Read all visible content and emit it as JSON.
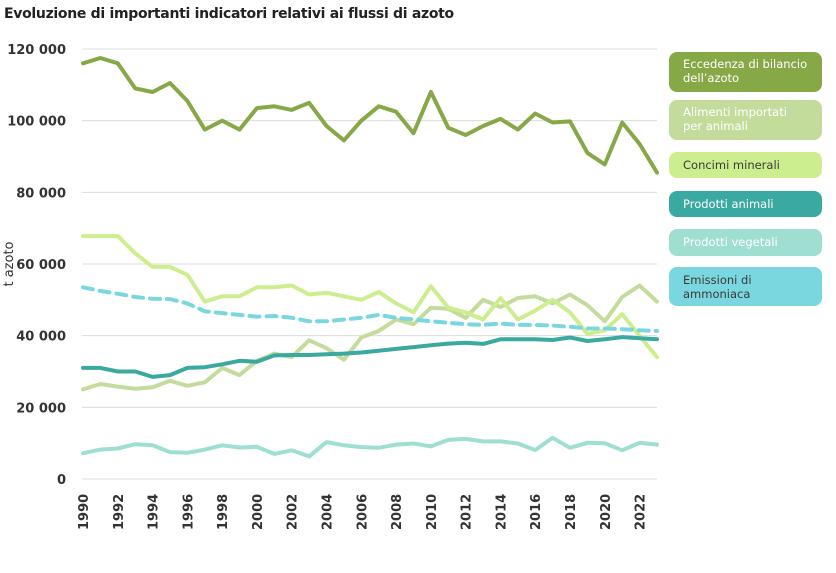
{
  "chart_data": {
    "type": "line",
    "title": "Evoluzione di importanti indicatori relativi ai flussi di azoto",
    "xlabel": "",
    "ylabel": "t azoto",
    "ylim": [
      0,
      120000
    ],
    "yticks": [
      "0",
      "20 000",
      "40 000",
      "60 000",
      "80 000",
      "100 000",
      "120 000"
    ],
    "ytick_values": [
      0,
      20000,
      40000,
      60000,
      80000,
      100000,
      120000
    ],
    "x": [
      1990,
      1991,
      1992,
      1993,
      1994,
      1995,
      1996,
      1997,
      1998,
      1999,
      2000,
      2001,
      2002,
      2003,
      2004,
      2005,
      2006,
      2007,
      2008,
      2009,
      2010,
      2011,
      2012,
      2013,
      2014,
      2015,
      2016,
      2017,
      2018,
      2019,
      2020,
      2021,
      2022,
      2023
    ],
    "xticks": [
      "1990",
      "1992",
      "1994",
      "1996",
      "1998",
      "2000",
      "2002",
      "2004",
      "2006",
      "2008",
      "2010",
      "2012",
      "2014",
      "2016",
      "2018",
      "2020",
      "2022"
    ],
    "grid": true,
    "legend_placement": "right",
    "series": [
      {
        "name": "Eccedenza di bilancio dell’azoto",
        "color": "#87a846",
        "text_color": "#ffffff",
        "dashed": false,
        "values": [
          116000,
          117500,
          116000,
          109000,
          108000,
          110500,
          105500,
          97500,
          100000,
          97500,
          103500,
          104000,
          103000,
          105000,
          98500,
          94500,
          100000,
          104000,
          102500,
          96500,
          108000,
          98000,
          96000,
          98500,
          100500,
          97500,
          102000,
          99500,
          99800,
          91000,
          87800,
          99500,
          93500,
          85500
        ]
      },
      {
        "name": "Alimenti importati per animali",
        "color": "#c3dc9c",
        "text_color": "#ffffff",
        "dashed": false,
        "values": [
          25000,
          26500,
          25800,
          25200,
          25600,
          27400,
          26000,
          27000,
          31000,
          29000,
          33000,
          35000,
          34000,
          38700,
          36500,
          33300,
          39500,
          41300,
          44500,
          43200,
          47800,
          47500,
          45000,
          50000,
          48000,
          50500,
          51000,
          49000,
          51500,
          48500,
          44000,
          50800,
          54000,
          49500
        ]
      },
      {
        "name": "Concimi minerali",
        "color": "#cdee8e",
        "text_color": "#3a3a3a",
        "dashed": false,
        "values": [
          67800,
          67800,
          67800,
          63000,
          59200,
          59200,
          57000,
          49500,
          51000,
          51000,
          53500,
          53500,
          54000,
          51500,
          52000,
          51000,
          50000,
          52200,
          49000,
          46500,
          53800,
          47800,
          46500,
          44500,
          50500,
          44500,
          47000,
          50000,
          46500,
          40500,
          41500,
          46000,
          40000,
          34000
        ]
      },
      {
        "name": "Prodotti animali",
        "color": "#3aa9a1",
        "text_color": "#ffffff",
        "dashed": false,
        "values": [
          31000,
          31000,
          30000,
          30000,
          28500,
          29000,
          31000,
          31200,
          32000,
          33000,
          32700,
          34500,
          34600,
          34600,
          34800,
          35000,
          35300,
          35800,
          36300,
          36800,
          37300,
          37800,
          38000,
          37700,
          39000,
          39000,
          39000,
          38800,
          39500,
          38500,
          39000,
          39600,
          39300,
          39000
        ]
      },
      {
        "name": "Prodotti vegetali",
        "color": "#9edfd2",
        "text_color": "#ffffff",
        "dashed": false,
        "values": [
          7200,
          8200,
          8500,
          9700,
          9400,
          7500,
          7300,
          8200,
          9400,
          8800,
          9000,
          7000,
          8000,
          6300,
          10300,
          9400,
          8900,
          8700,
          9600,
          9900,
          9100,
          10900,
          11200,
          10500,
          10500,
          9900,
          8100,
          11500,
          8700,
          10100,
          10000,
          8000,
          10100,
          9600
        ]
      },
      {
        "name": "Emissioni di ammoniaca",
        "color": "#7ad7e0",
        "text_color": "#3a3a3a",
        "dashed": true,
        "values": [
          53500,
          52500,
          51700,
          50800,
          50300,
          50200,
          49000,
          46800,
          46300,
          45800,
          45300,
          45500,
          45000,
          44000,
          44000,
          44500,
          45000,
          45800,
          45000,
          44500,
          44000,
          43600,
          43200,
          43000,
          43400,
          43000,
          43000,
          42800,
          42500,
          42000,
          42000,
          41800,
          41500,
          41300
        ]
      }
    ]
  }
}
